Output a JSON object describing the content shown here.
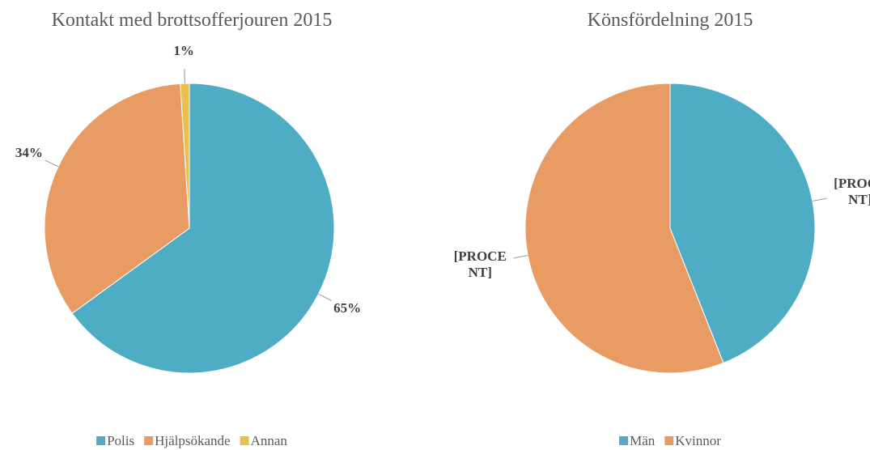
{
  "chart_data": [
    {
      "type": "pie",
      "title": "Kontakt med brottsofferjouren 2015",
      "categories": [
        "Polis",
        "Hjälpsökande",
        "Annan"
      ],
      "values": [
        65,
        34,
        1
      ],
      "value_labels": [
        "65%",
        "34%",
        "1%"
      ],
      "colors": [
        "#4eacc5",
        "#e89c63",
        "#e8c050"
      ],
      "legend": "bottom"
    },
    {
      "type": "pie",
      "title": "Könsfördelning 2015",
      "categories": [
        "Män",
        "Kvinnor"
      ],
      "values": [
        44,
        56
      ],
      "value_labels": [
        "[PROCENT]",
        "[PROCENT]"
      ],
      "colors": [
        "#4eacc5",
        "#e89c63"
      ],
      "legend": "bottom"
    }
  ]
}
